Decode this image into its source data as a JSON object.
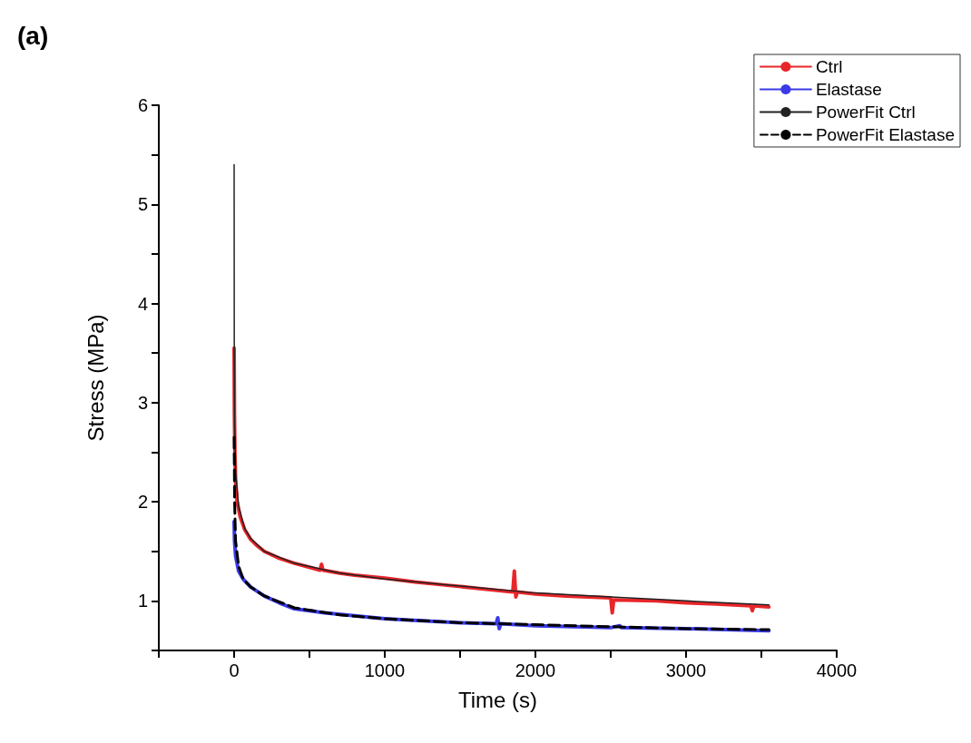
{
  "chart_data": {
    "type": "line",
    "title": "(a)",
    "xlabel": "Time (s)",
    "ylabel": "Stress (MPa)",
    "legend": "top right",
    "grid": false,
    "marker": "none",
    "xlim": [
      -500,
      4000
    ],
    "ylim": [
      0.5,
      6
    ],
    "xticks": [
      {
        "value": -500,
        "label": null
      },
      0,
      {
        "value": 500,
        "label": null
      },
      1000,
      {
        "value": 1500,
        "label": null
      },
      2000,
      {
        "value": 2500,
        "label": null
      },
      3000,
      {
        "value": 3500,
        "label": null
      },
      4000
    ],
    "yticks": [
      {
        "value": 0.5,
        "label": null
      },
      1,
      {
        "value": 1.5,
        "label": null
      },
      2,
      {
        "value": 2.5,
        "label": null
      },
      3,
      {
        "value": 3.5,
        "label": null
      },
      4,
      {
        "value": 4.5,
        "label": null
      },
      5,
      {
        "value": 5.5,
        "label": null
      },
      6
    ],
    "series": [
      {
        "name": "Ctrl",
        "color": "#e8262a",
        "line_style": "solid",
        "x": [
          0,
          2,
          5,
          10,
          20,
          40,
          70,
          110,
          150,
          200,
          300,
          400,
          500,
          570,
          580,
          590,
          700,
          800,
          1000,
          1200,
          1400,
          1600,
          1850,
          1860,
          1870,
          1880,
          2000,
          2200,
          2500,
          2510,
          2520,
          2800,
          3000,
          3200,
          3430,
          3440,
          3450,
          3550
        ],
        "values": [
          3.55,
          2.9,
          2.5,
          2.2,
          2.0,
          1.85,
          1.72,
          1.62,
          1.56,
          1.5,
          1.43,
          1.38,
          1.34,
          1.31,
          1.37,
          1.31,
          1.28,
          1.26,
          1.23,
          1.19,
          1.16,
          1.13,
          1.09,
          1.3,
          1.04,
          1.09,
          1.07,
          1.05,
          1.03,
          0.88,
          1.01,
          1.0,
          0.98,
          0.97,
          0.95,
          0.9,
          0.95,
          0.94
        ]
      },
      {
        "name": "Elastase",
        "color": "#3a3ae8",
        "line_style": "solid",
        "x": [
          0,
          3,
          10,
          30,
          60,
          110,
          200,
          300,
          400,
          600,
          800,
          1000,
          1250,
          1500,
          1740,
          1750,
          1760,
          1770,
          2000,
          2500,
          2560,
          2570,
          3000,
          3550
        ],
        "values": [
          1.8,
          1.6,
          1.45,
          1.3,
          1.22,
          1.14,
          1.05,
          0.98,
          0.92,
          0.88,
          0.85,
          0.82,
          0.8,
          0.78,
          0.77,
          0.83,
          0.72,
          0.77,
          0.75,
          0.73,
          0.75,
          0.73,
          0.72,
          0.7
        ]
      },
      {
        "name": "PowerFit Ctrl",
        "color": "#222222",
        "line_style": "solid",
        "x": [
          0,
          1,
          3,
          10,
          30,
          70,
          110,
          200,
          400,
          700,
          1000,
          1500,
          2000,
          2500,
          3000,
          3550
        ],
        "values": [
          5.4,
          3.6,
          2.8,
          2.3,
          1.95,
          1.73,
          1.63,
          1.5,
          1.38,
          1.28,
          1.22,
          1.15,
          1.08,
          1.04,
          1.0,
          0.96
        ]
      },
      {
        "name": "PowerFit Elastase",
        "color": "#000000",
        "line_style": "dashed",
        "x": [
          0,
          3,
          10,
          30,
          60,
          110,
          200,
          400,
          700,
          1000,
          1500,
          2000,
          2500,
          3000,
          3550
        ],
        "values": [
          2.65,
          2.0,
          1.6,
          1.35,
          1.22,
          1.14,
          1.05,
          0.93,
          0.86,
          0.82,
          0.78,
          0.76,
          0.74,
          0.72,
          0.71
        ]
      }
    ]
  }
}
